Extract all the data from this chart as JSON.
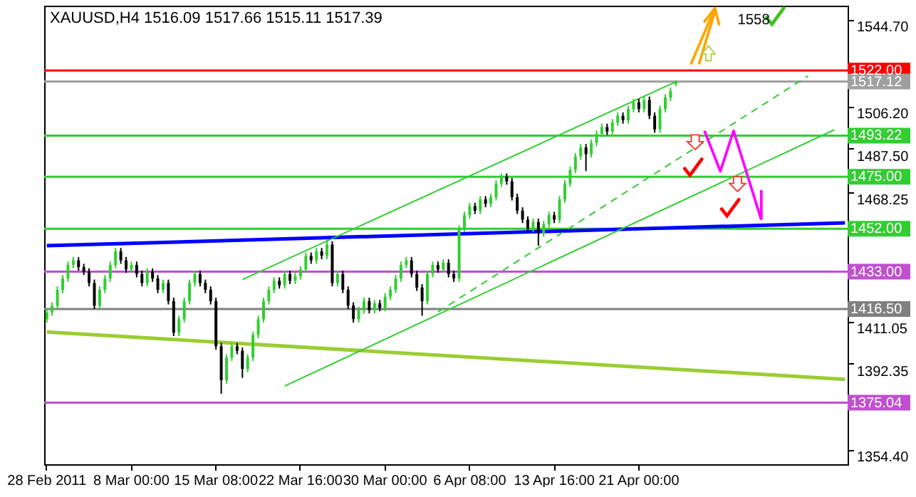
{
  "chart_data": {
    "type": "candlestick",
    "title": "XAUUSD,H4  1516.09 1517.66 1515.11 1517.39",
    "categories": [
      "28 Feb 2011",
      null,
      null,
      null,
      null,
      null,
      null,
      null,
      null,
      null,
      null,
      null,
      null,
      null,
      null,
      null,
      "8 Mar 00:00",
      null,
      null,
      null,
      null,
      null,
      null,
      null,
      null,
      null,
      null,
      null,
      null,
      null,
      null,
      null,
      "15 Mar 08:00",
      null,
      null,
      null,
      null,
      null,
      null,
      null,
      null,
      null,
      null,
      null,
      null,
      null,
      null,
      null,
      "22 Mar 16:00",
      null,
      null,
      null,
      null,
      null,
      null,
      null,
      null,
      null,
      null,
      null,
      null,
      null,
      null,
      null,
      "30 Mar 00:00",
      null,
      null,
      null,
      null,
      null,
      null,
      null,
      null,
      null,
      null,
      null,
      null,
      null,
      null,
      null,
      "6 Apr 08:00",
      null,
      null,
      null,
      null,
      null,
      null,
      null,
      null,
      null,
      null,
      null,
      null,
      null,
      null,
      null,
      "13 Apr 16:00",
      null,
      null,
      null,
      null,
      null,
      null,
      null,
      null,
      null,
      null,
      null,
      null,
      null,
      null,
      null,
      "21 Apr 00:00",
      null,
      null,
      null,
      null,
      null,
      null,
      null,
      null,
      null,
      null,
      null,
      null,
      null,
      null,
      null,
      null,
      null,
      null,
      null,
      null,
      null,
      null,
      null,
      null,
      null,
      null,
      null,
      null,
      null,
      null,
      null,
      null,
      null,
      null,
      null,
      null,
      null,
      null,
      null
    ],
    "ohlc": [
      [
        1412,
        1416.5,
        1410.5,
        1415
      ],
      [
        1415,
        1419.5,
        1413.5,
        1418
      ],
      [
        1418,
        1426.5,
        1416.5,
        1425
      ],
      [
        1425,
        1431.5,
        1423.5,
        1430
      ],
      [
        1430,
        1437.5,
        1428.5,
        1436
      ],
      [
        1436,
        1439.5,
        1434.5,
        1438
      ],
      [
        1438,
        1439.5,
        1433.5,
        1435
      ],
      [
        1435,
        1436.5,
        1431.5,
        1433
      ],
      [
        1433,
        1434.5,
        1426.5,
        1428
      ],
      [
        1428,
        1429.5,
        1416.5,
        1418
      ],
      [
        1418,
        1426.5,
        1416.5,
        1425
      ],
      [
        1425,
        1431.5,
        1423.5,
        1430
      ],
      [
        1430,
        1437.5,
        1428.5,
        1436
      ],
      [
        1436,
        1443.5,
        1434.5,
        1442
      ],
      [
        1442,
        1443.5,
        1436.5,
        1438
      ],
      [
        1438,
        1439.5,
        1432.5,
        1434
      ],
      [
        1434,
        1437.5,
        1432.5,
        1436
      ],
      [
        1436,
        1437.5,
        1430.5,
        1432
      ],
      [
        1432,
        1433.5,
        1426.5,
        1428
      ],
      [
        1428,
        1434.5,
        1426.5,
        1433
      ],
      [
        1433,
        1434.5,
        1428.5,
        1430
      ],
      [
        1430,
        1431.5,
        1423.5,
        1425
      ],
      [
        1425,
        1429.5,
        1423.5,
        1428
      ],
      [
        1428,
        1429.5,
        1418.5,
        1420
      ],
      [
        1420,
        1421.5,
        1404.5,
        1406
      ],
      [
        1406,
        1413.5,
        1404.5,
        1412
      ],
      [
        1412,
        1421.5,
        1410.5,
        1420
      ],
      [
        1420,
        1429.5,
        1418.5,
        1428
      ],
      [
        1428,
        1433.5,
        1426.5,
        1432
      ],
      [
        1432,
        1433.5,
        1426.5,
        1428
      ],
      [
        1428,
        1429.5,
        1423.5,
        1425
      ],
      [
        1425,
        1426.5,
        1418.5,
        1420
      ],
      [
        1420,
        1421.5,
        1398.5,
        1400
      ],
      [
        1400,
        1401.5,
        1379,
        1385
      ],
      [
        1385,
        1396.5,
        1383.5,
        1395
      ],
      [
        1395,
        1401.5,
        1393.5,
        1400
      ],
      [
        1400,
        1401.5,
        1396.5,
        1398
      ],
      [
        1398,
        1399.5,
        1386,
        1390
      ],
      [
        1390,
        1396.5,
        1388.5,
        1395
      ],
      [
        1395,
        1406.5,
        1393.5,
        1405
      ],
      [
        1405,
        1413.5,
        1403.5,
        1412
      ],
      [
        1412,
        1421.5,
        1410.5,
        1420
      ],
      [
        1420,
        1426.5,
        1418.5,
        1425
      ],
      [
        1425,
        1430.5,
        1423.5,
        1429
      ],
      [
        1429,
        1430.5,
        1425.5,
        1427
      ],
      [
        1427,
        1433.5,
        1425.5,
        1432
      ],
      [
        1432,
        1433.5,
        1427.5,
        1429
      ],
      [
        1429,
        1432.5,
        1427.5,
        1431
      ],
      [
        1431,
        1435.5,
        1429.5,
        1434
      ],
      [
        1434,
        1441.5,
        1432.5,
        1440
      ],
      [
        1440,
        1441.5,
        1436.5,
        1438
      ],
      [
        1438,
        1443.5,
        1436.5,
        1442
      ],
      [
        1442,
        1443.5,
        1438.5,
        1440
      ],
      [
        1440,
        1447.5,
        1438.5,
        1445
      ],
      [
        1445,
        1446.5,
        1426.5,
        1428
      ],
      [
        1428,
        1433.5,
        1426.5,
        1432
      ],
      [
        1432,
        1433.5,
        1423.5,
        1425
      ],
      [
        1425,
        1426.5,
        1416.5,
        1418
      ],
      [
        1418,
        1419.5,
        1410.5,
        1412
      ],
      [
        1412,
        1417.5,
        1410.5,
        1416
      ],
      [
        1416,
        1421.5,
        1414.5,
        1420
      ],
      [
        1420,
        1421.5,
        1414.5,
        1416
      ],
      [
        1416,
        1420.5,
        1414.5,
        1419
      ],
      [
        1419,
        1420.5,
        1415.5,
        1417
      ],
      [
        1417,
        1423.5,
        1415.5,
        1422
      ],
      [
        1422,
        1426.5,
        1420.5,
        1425
      ],
      [
        1425,
        1431.5,
        1423.5,
        1430
      ],
      [
        1430,
        1437.5,
        1428.5,
        1436
      ],
      [
        1436,
        1439.5,
        1434.5,
        1438
      ],
      [
        1438,
        1439.5,
        1430.5,
        1432
      ],
      [
        1432,
        1433.5,
        1424.5,
        1426
      ],
      [
        1426,
        1427.5,
        1413.5,
        1420
      ],
      [
        1420,
        1433.5,
        1418.5,
        1432
      ],
      [
        1432,
        1437.5,
        1430.5,
        1436
      ],
      [
        1436,
        1437.5,
        1432.5,
        1434
      ],
      [
        1434,
        1438.5,
        1432.5,
        1437
      ],
      [
        1437,
        1438.5,
        1430.5,
        1432
      ],
      [
        1432,
        1433.5,
        1428.5,
        1430
      ],
      [
        1430,
        1453.5,
        1428.5,
        1452
      ],
      [
        1452,
        1459.5,
        1450.5,
        1458
      ],
      [
        1458,
        1463.5,
        1456.5,
        1462
      ],
      [
        1462,
        1463.5,
        1458.5,
        1460
      ],
      [
        1460,
        1466.5,
        1458.5,
        1465
      ],
      [
        1465,
        1466.5,
        1461.5,
        1463
      ],
      [
        1463,
        1467.5,
        1461.5,
        1466
      ],
      [
        1466,
        1473.5,
        1464.5,
        1472
      ],
      [
        1472,
        1476.5,
        1470.5,
        1475
      ],
      [
        1475,
        1476.5,
        1471.5,
        1473
      ],
      [
        1473,
        1474.5,
        1464.5,
        1466
      ],
      [
        1466,
        1467.5,
        1458.5,
        1460
      ],
      [
        1460,
        1461.5,
        1454.5,
        1456
      ],
      [
        1456,
        1457.5,
        1450.5,
        1452
      ],
      [
        1452,
        1456.5,
        1450.5,
        1455
      ],
      [
        1455,
        1456.5,
        1444.5,
        1450
      ],
      [
        1450,
        1455.5,
        1448.5,
        1454
      ],
      [
        1454,
        1459.5,
        1452.5,
        1458
      ],
      [
        1458,
        1459.5,
        1454.5,
        1456
      ],
      [
        1456,
        1466.5,
        1454.5,
        1465
      ],
      [
        1465,
        1473.5,
        1463.5,
        1472
      ],
      [
        1472,
        1479.5,
        1470.5,
        1478
      ],
      [
        1478,
        1485.5,
        1476.5,
        1484
      ],
      [
        1484,
        1489.5,
        1482.5,
        1488
      ],
      [
        1488,
        1489.5,
        1477.5,
        1485
      ],
      [
        1485,
        1491.5,
        1483.5,
        1490
      ],
      [
        1490,
        1495.5,
        1488.5,
        1494
      ],
      [
        1494,
        1498.5,
        1492.5,
        1497
      ],
      [
        1497,
        1498.5,
        1493.5,
        1495
      ],
      [
        1495,
        1500.5,
        1493.5,
        1499
      ],
      [
        1499,
        1503.5,
        1497.5,
        1502
      ],
      [
        1502,
        1503.5,
        1498.5,
        1500
      ],
      [
        1500,
        1506.5,
        1498.5,
        1505
      ],
      [
        1505,
        1509.5,
        1503.5,
        1508
      ],
      [
        1508,
        1509.5,
        1503.5,
        1505
      ],
      [
        1505,
        1510.5,
        1503.5,
        1509
      ],
      [
        1509,
        1510.5,
        1500.5,
        1502
      ],
      [
        1502,
        1503.5,
        1494.5,
        1496
      ],
      [
        1496,
        1506.5,
        1494.5,
        1505
      ],
      [
        1505,
        1511.5,
        1503.5,
        1510
      ],
      [
        1510,
        1514.5,
        1508.5,
        1513
      ],
      [
        1516.09,
        1517.66,
        1515.11,
        1517.39
      ],
      null,
      null,
      null,
      null,
      null,
      null,
      null,
      null,
      null,
      null,
      null,
      null,
      null,
      null,
      null,
      null,
      null,
      null,
      null,
      null,
      null,
      null,
      null,
      null,
      null,
      null,
      null,
      null,
      null,
      null,
      null,
      null
    ],
    "series": [
      {
        "type": "line",
        "color": "#0000ff",
        "values": [
          1444.5,
          null,
          null,
          null,
          null,
          null,
          null,
          null,
          null,
          null,
          null,
          null,
          null,
          null,
          null,
          null,
          null,
          null,
          null,
          null,
          null,
          null,
          null,
          null,
          null,
          null,
          null,
          null,
          null,
          null,
          null,
          null,
          null,
          null,
          null,
          null,
          null,
          null,
          null,
          null,
          null,
          null,
          null,
          null,
          null,
          null,
          null,
          null,
          null,
          null,
          null,
          null,
          null,
          null,
          null,
          null,
          null,
          null,
          null,
          null,
          null,
          null,
          null,
          null,
          null,
          null,
          null,
          null,
          null,
          null,
          null,
          null,
          null,
          null,
          null,
          null,
          null,
          null,
          null,
          null,
          null,
          null,
          null,
          null,
          null,
          null,
          null,
          null,
          null,
          null,
          null,
          null,
          null,
          null,
          null,
          null,
          null,
          null,
          null,
          null,
          null,
          null,
          null,
          null,
          null,
          null,
          null,
          null,
          null,
          null,
          null,
          null,
          null,
          null,
          null,
          null,
          null,
          null,
          null,
          null,
          null,
          null,
          null,
          null,
          null,
          null,
          null,
          null,
          null,
          null,
          null,
          null,
          null,
          null,
          null,
          null,
          null,
          null,
          null,
          null,
          null,
          null,
          null,
          null,
          null,
          null,
          null,
          null,
          null,
          null,
          null,
          1454.6
        ]
      },
      {
        "type": "line",
        "color": "#9acd32",
        "values": [
          1406.3,
          null,
          null,
          null,
          null,
          null,
          null,
          null,
          null,
          null,
          null,
          null,
          null,
          null,
          null,
          null,
          null,
          null,
          null,
          null,
          null,
          null,
          null,
          null,
          null,
          null,
          null,
          null,
          null,
          null,
          null,
          null,
          null,
          null,
          null,
          null,
          null,
          null,
          null,
          null,
          null,
          null,
          null,
          null,
          null,
          null,
          null,
          null,
          null,
          null,
          null,
          null,
          null,
          null,
          null,
          null,
          null,
          null,
          null,
          null,
          null,
          null,
          null,
          null,
          null,
          null,
          null,
          null,
          null,
          null,
          null,
          null,
          null,
          null,
          null,
          null,
          null,
          null,
          null,
          null,
          null,
          null,
          null,
          null,
          null,
          null,
          null,
          null,
          null,
          null,
          null,
          null,
          null,
          null,
          null,
          null,
          null,
          null,
          null,
          null,
          null,
          null,
          null,
          null,
          null,
          null,
          null,
          null,
          null,
          null,
          null,
          null,
          null,
          null,
          null,
          null,
          null,
          null,
          null,
          null,
          null,
          null,
          null,
          null,
          null,
          null,
          null,
          null,
          null,
          null,
          null,
          null,
          null,
          null,
          null,
          null,
          null,
          null,
          null,
          null,
          null,
          null,
          null,
          null,
          null,
          null,
          null,
          null,
          null,
          null,
          null,
          1385.4
        ]
      },
      {
        "type": "line",
        "color": "#32cd32",
        "values": [
          null,
          null,
          null,
          null,
          null,
          null,
          null,
          null,
          null,
          null,
          null,
          null,
          null,
          null,
          null,
          null,
          null,
          null,
          null,
          null,
          null,
          null,
          null,
          null,
          null,
          null,
          null,
          null,
          null,
          null,
          null,
          null,
          null,
          null,
          null,
          null,
          null,
          1429.5,
          null,
          null,
          null,
          null,
          null,
          null,
          null,
          null,
          null,
          null,
          null,
          null,
          null,
          null,
          null,
          null,
          null,
          null,
          null,
          null,
          null,
          null,
          null,
          null,
          null,
          null,
          null,
          null,
          null,
          null,
          null,
          null,
          null,
          null,
          null,
          null,
          null,
          null,
          null,
          null,
          null,
          null,
          null,
          null,
          null,
          null,
          null,
          null,
          null,
          null,
          null,
          null,
          null,
          null,
          null,
          null,
          null,
          null,
          null,
          null,
          null,
          null,
          null,
          null,
          null,
          null,
          null,
          null,
          null,
          null,
          null,
          null,
          null,
          null,
          null,
          null,
          null,
          null,
          null,
          null,
          null,
          1517,
          null,
          null,
          null,
          null,
          null,
          null,
          null,
          null,
          null,
          null,
          null,
          null,
          null,
          null,
          null,
          null,
          null,
          null,
          null,
          null,
          null,
          null,
          null,
          null,
          null,
          null,
          null,
          null,
          null,
          null,
          null,
          null
        ]
      },
      {
        "type": "line",
        "color": "#32cd32",
        "values": [
          null,
          null,
          null,
          null,
          null,
          null,
          null,
          null,
          null,
          null,
          null,
          null,
          null,
          null,
          null,
          null,
          null,
          null,
          null,
          null,
          null,
          null,
          null,
          null,
          null,
          null,
          null,
          null,
          null,
          null,
          null,
          null,
          null,
          null,
          null,
          null,
          null,
          null,
          null,
          null,
          null,
          null,
          null,
          null,
          null,
          1382.4,
          null,
          null,
          null,
          null,
          null,
          null,
          null,
          null,
          null,
          null,
          null,
          null,
          null,
          null,
          null,
          null,
          null,
          null,
          null,
          null,
          null,
          null,
          null,
          null,
          null,
          null,
          null,
          null,
          null,
          null,
          null,
          null,
          null,
          null,
          null,
          null,
          null,
          null,
          null,
          null,
          null,
          null,
          null,
          null,
          null,
          null,
          null,
          null,
          null,
          null,
          null,
          null,
          null,
          null,
          null,
          null,
          null,
          null,
          null,
          null,
          null,
          null,
          null,
          null,
          null,
          null,
          null,
          null,
          null,
          null,
          null,
          null,
          null,
          null,
          null,
          null,
          null,
          null,
          null,
          null,
          null,
          null,
          null,
          null,
          null,
          null,
          null,
          null,
          null,
          null,
          null,
          null,
          null,
          null,
          null,
          null,
          null,
          null,
          null,
          null,
          null,
          null,
          null,
          1495.8,
          null,
          null
        ]
      },
      {
        "type": "line",
        "color": "#32cd32",
        "line_style": "dashed",
        "values": [
          null,
          null,
          null,
          null,
          null,
          null,
          null,
          null,
          null,
          null,
          null,
          null,
          null,
          null,
          null,
          null,
          null,
          null,
          null,
          null,
          null,
          null,
          null,
          null,
          null,
          null,
          null,
          null,
          null,
          null,
          null,
          null,
          null,
          null,
          null,
          null,
          null,
          null,
          null,
          null,
          null,
          null,
          null,
          null,
          null,
          null,
          null,
          null,
          null,
          null,
          null,
          null,
          null,
          null,
          null,
          null,
          null,
          null,
          null,
          null,
          null,
          null,
          null,
          null,
          null,
          null,
          null,
          null,
          null,
          null,
          null,
          null,
          null,
          null,
          1415.2,
          null,
          null,
          null,
          null,
          null,
          null,
          null,
          null,
          null,
          null,
          null,
          null,
          null,
          null,
          null,
          null,
          null,
          null,
          null,
          null,
          null,
          null,
          null,
          null,
          null,
          null,
          null,
          null,
          null,
          null,
          null,
          null,
          null,
          null,
          null,
          null,
          null,
          null,
          null,
          null,
          null,
          null,
          null,
          null,
          null,
          null,
          null,
          null,
          null,
          null,
          null,
          null,
          null,
          null,
          null,
          null,
          null,
          null,
          null,
          null,
          null,
          null,
          null,
          null,
          null,
          null,
          null,
          null,
          null,
          1519.6,
          null,
          null,
          null,
          null,
          null,
          null,
          null
        ]
      }
    ],
    "ref_lines": [
      {
        "axis": "y",
        "value": 1522,
        "label": "1522.00",
        "color": "#ff0000"
      },
      {
        "axis": "y",
        "value": 1517.12,
        "label": "1517.12",
        "color": "#a0a0a0"
      },
      {
        "axis": "y",
        "value": 1493.22,
        "label": "1493.22",
        "color": "#32cd32"
      },
      {
        "axis": "y",
        "value": 1475,
        "label": "1475.00",
        "color": "#32cd32"
      },
      {
        "axis": "y",
        "value": 1452,
        "label": "1452.00",
        "color": "#32cd32"
      },
      {
        "axis": "y",
        "value": 1433,
        "label": "1433.00",
        "color": "#c050d0"
      },
      {
        "axis": "y",
        "value": 1416.5,
        "label": "1416.50",
        "color": "#808080"
      },
      {
        "axis": "y",
        "value": 1375.04,
        "label": "1375.04",
        "color": "#c050d0"
      }
    ],
    "annotations": [
      "1558"
    ],
    "ylim": [
      1347.8,
      1550.7
    ],
    "yticks": [
      {
        "value": 1544.7,
        "label": "1544.70"
      },
      {
        "value": 1506.2,
        "label": "1506.20"
      },
      {
        "value": 1487.5,
        "label": "1487.50"
      },
      {
        "value": 1468.25,
        "label": "1468.25"
      },
      {
        "value": 1411.05,
        "label": "1411.05"
      },
      {
        "value": 1392.35,
        "label": "1392.35"
      },
      {
        "value": 1354.4,
        "label": "1354.40"
      }
    ],
    "grid": false
  }
}
